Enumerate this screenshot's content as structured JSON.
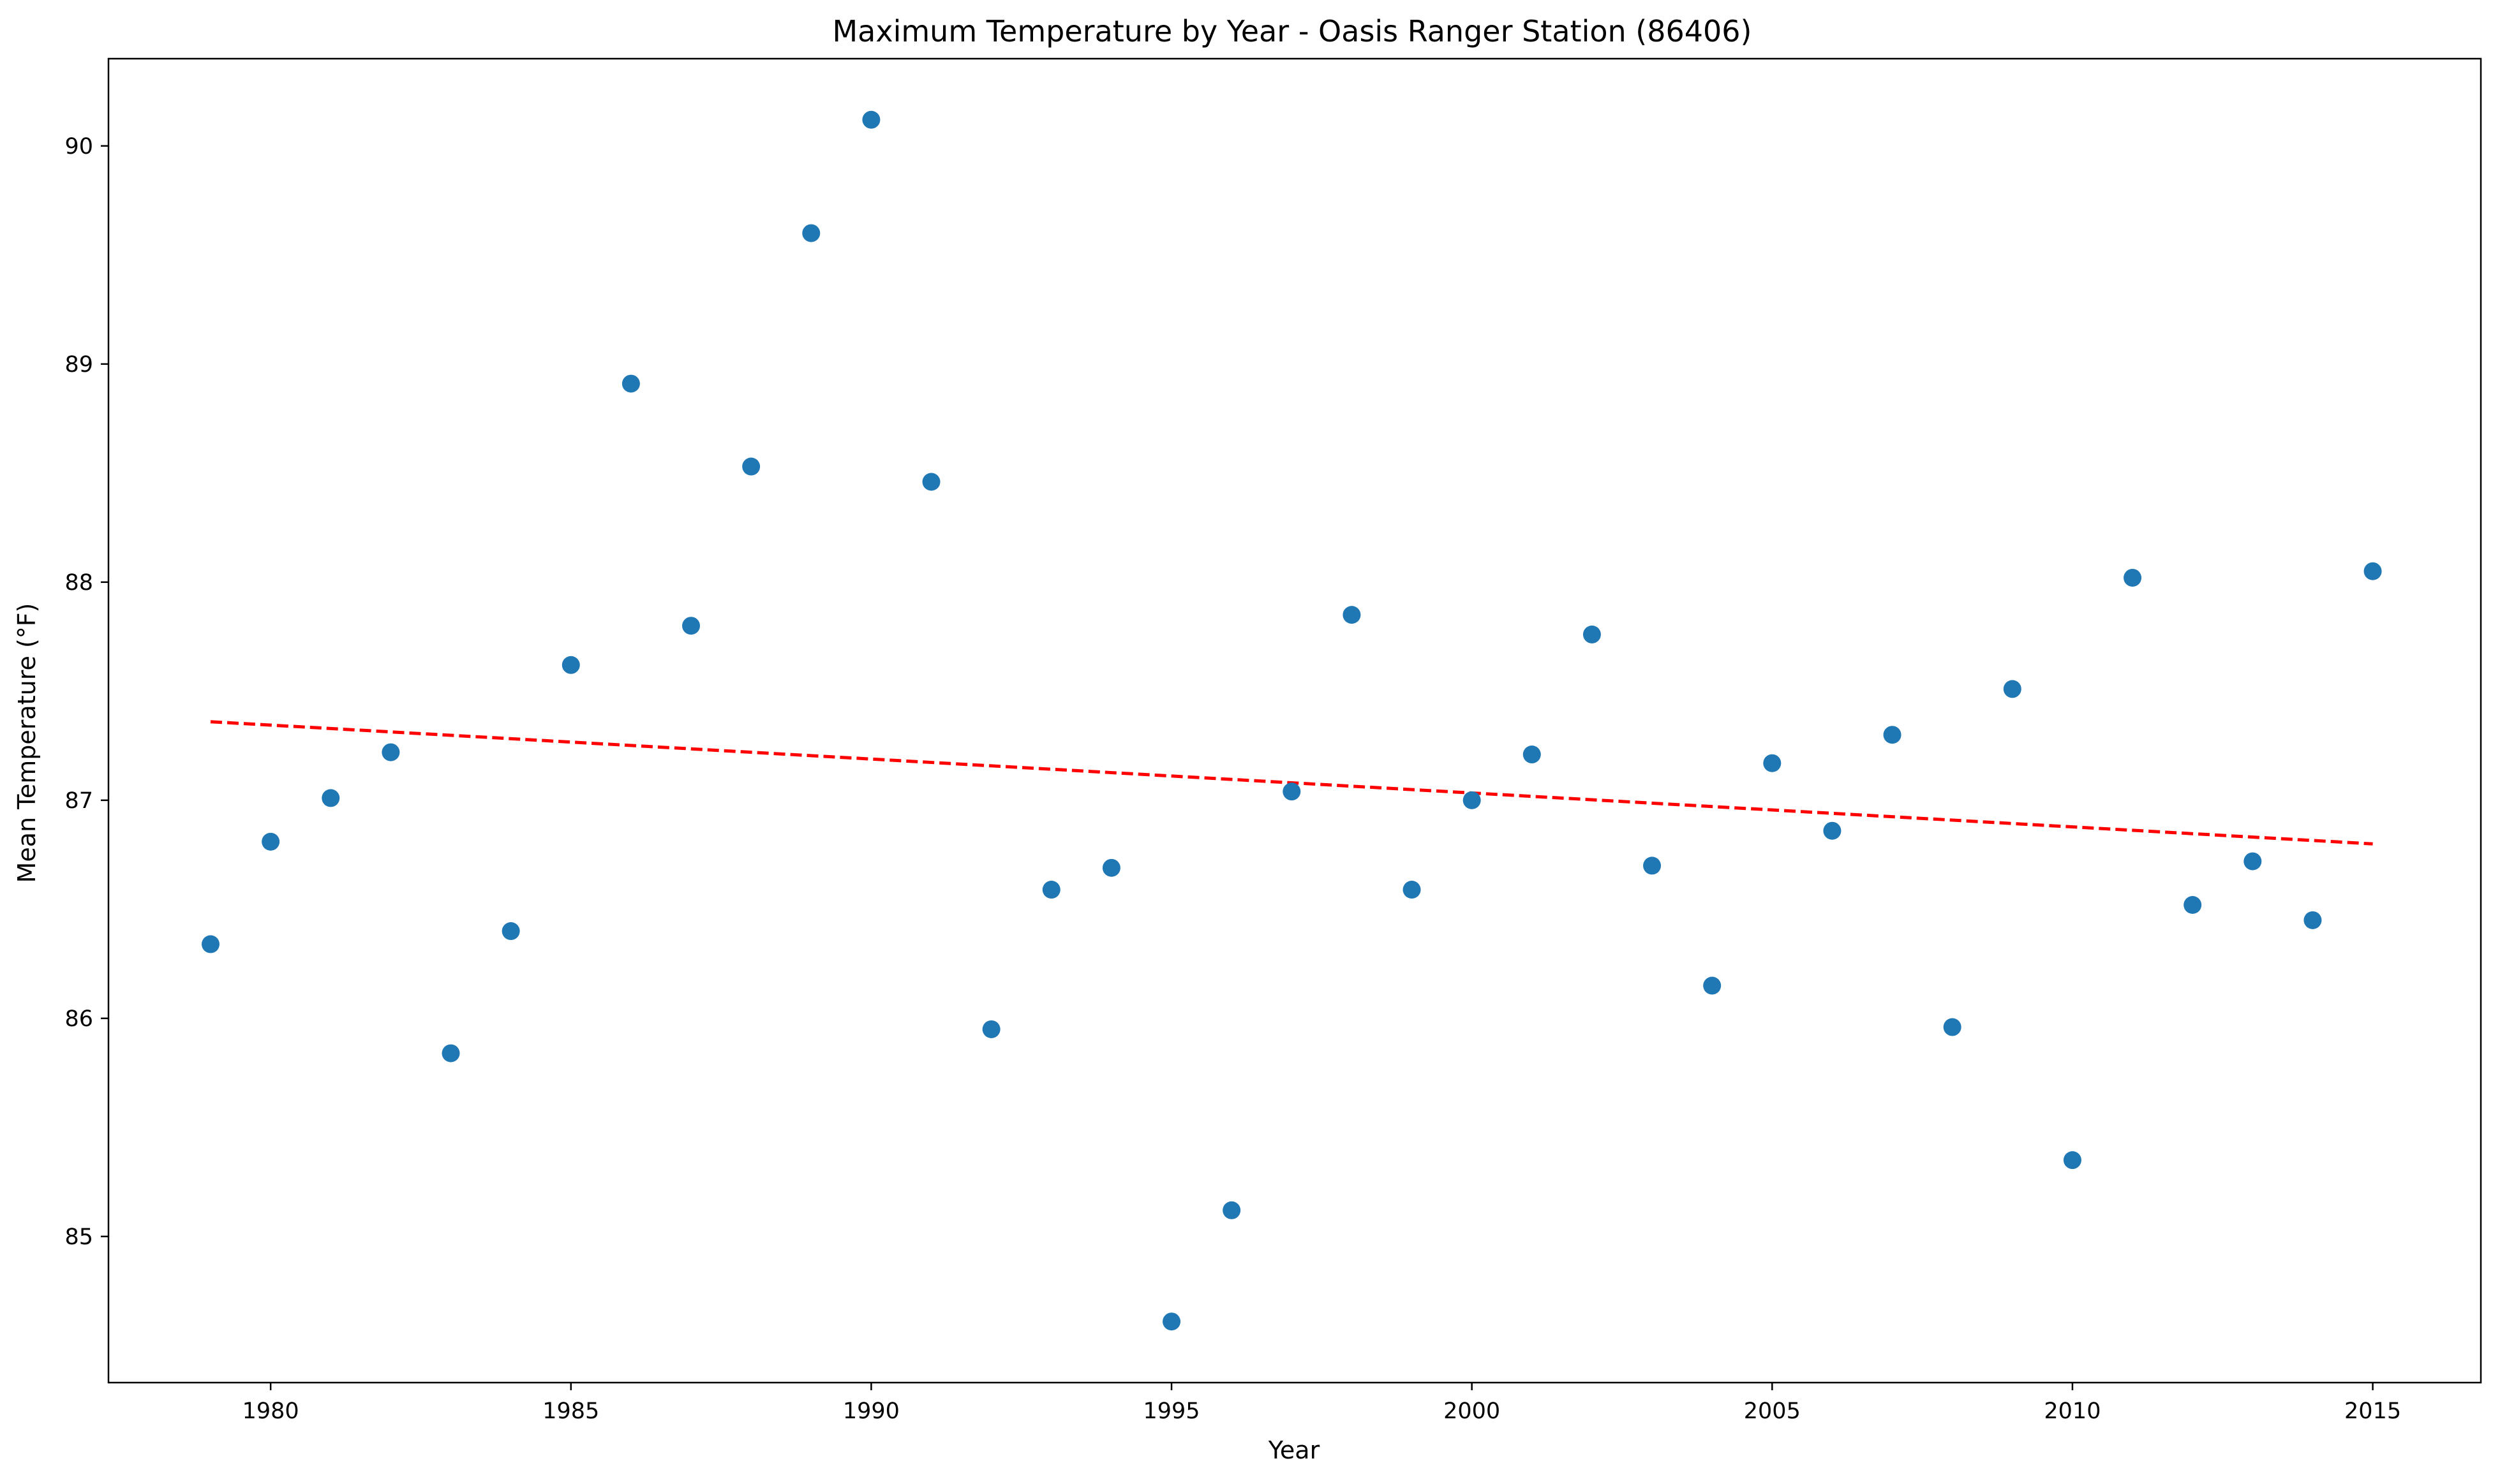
{
  "chart_data": {
    "type": "scatter",
    "title": "Maximum Temperature by Year - Oasis Ranger Station (86406)",
    "xlabel": "Year",
    "ylabel": "Mean Temperature (°F)",
    "xlim": [
      1977.3,
      2016.8
    ],
    "ylim": [
      84.33,
      90.4
    ],
    "xticks": [
      1980,
      1985,
      1990,
      1995,
      2000,
      2005,
      2010,
      2015
    ],
    "yticks": [
      85,
      86,
      87,
      88,
      89,
      90
    ],
    "grid": false,
    "series": [
      {
        "marker_color": "#1f77b4",
        "x": [
          1979,
          1980,
          1981,
          1982,
          1983,
          1984,
          1985,
          1986,
          1987,
          1988,
          1989,
          1990,
          1991,
          1992,
          1993,
          1994,
          1995,
          1996,
          1997,
          1998,
          1999,
          2000,
          2001,
          2002,
          2003,
          2004,
          2005,
          2006,
          2007,
          2008,
          2009,
          2010,
          2011,
          2012,
          2013,
          2014,
          2015
        ],
        "y": [
          86.34,
          86.81,
          87.01,
          87.22,
          85.84,
          86.4,
          87.62,
          88.91,
          87.8,
          88.53,
          89.6,
          90.12,
          88.46,
          85.95,
          86.59,
          86.69,
          84.61,
          85.12,
          87.04,
          87.85,
          86.59,
          87.0,
          87.21,
          87.76,
          86.7,
          86.15,
          87.17,
          86.86,
          87.3,
          85.96,
          87.51,
          85.35,
          88.02,
          86.52,
          86.72,
          86.45,
          88.05
        ]
      }
    ],
    "trendline": {
      "color": "#ff0000",
      "style": "dashed",
      "x": [
        1979,
        2015
      ],
      "y": [
        87.36,
        86.8
      ]
    }
  }
}
